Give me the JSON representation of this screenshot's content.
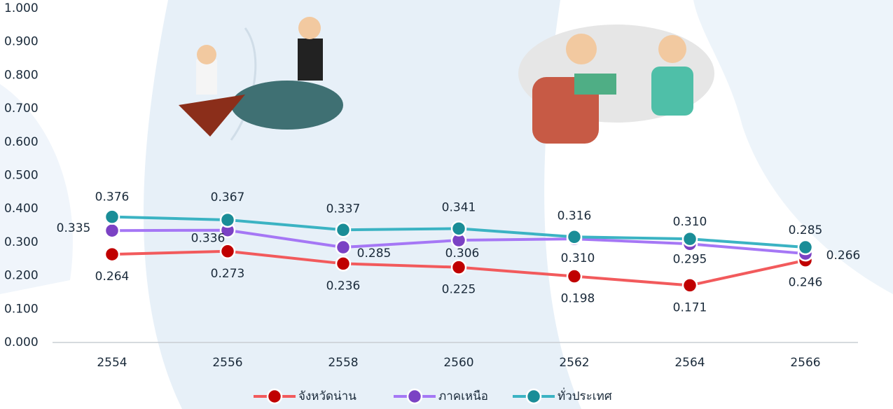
{
  "chart_data": {
    "type": "line",
    "categories": [
      "2554",
      "2556",
      "2558",
      "2560",
      "2562",
      "2564",
      "2566"
    ],
    "series": [
      {
        "name": "จังหวัดน่าน",
        "color": "#f25a5c",
        "marker_color": "#c00000",
        "values": [
          0.264,
          0.273,
          0.236,
          0.225,
          0.198,
          0.171,
          0.246
        ],
        "value_labels": [
          "0.264",
          "0.273",
          "0.236",
          "0.225",
          "0.198",
          "0.171",
          "0.246"
        ]
      },
      {
        "name": "ภาคเหนือ",
        "color": "#a577f5",
        "marker_color": "#7b42c4",
        "values": [
          0.335,
          0.336,
          0.285,
          0.306,
          0.31,
          0.295,
          0.266
        ],
        "value_labels": [
          "0.335",
          "0.336",
          "0.285",
          "0.306",
          "0.310",
          "0.295",
          "0.266"
        ]
      },
      {
        "name": "ทั่วประเทศ",
        "color": "#3bb3c3",
        "marker_color": "#1a8d97",
        "values": [
          0.376,
          0.367,
          0.337,
          0.341,
          0.316,
          0.31,
          0.285
        ],
        "value_labels": [
          "0.376",
          "0.367",
          "0.337",
          "0.341",
          "0.316",
          "0.310",
          "0.285"
        ]
      }
    ],
    "ylim": [
      0,
      1
    ],
    "yticks": [
      {
        "value": 0,
        "label": "0.000"
      },
      {
        "value": 0.1,
        "label": "0.100"
      },
      {
        "value": 0.2,
        "label": "0.200"
      },
      {
        "value": 0.3,
        "label": "0.300"
      },
      {
        "value": 0.4,
        "label": "0.400"
      },
      {
        "value": 0.5,
        "label": "0.500"
      },
      {
        "value": 0.6,
        "label": "0.600"
      },
      {
        "value": 0.7,
        "label": "0.700"
      },
      {
        "value": 0.8,
        "label": "0.800"
      },
      {
        "value": 0.9,
        "label": "0.900"
      },
      {
        "value": 1,
        "label": "1.000"
      }
    ],
    "legend": "bottom"
  }
}
